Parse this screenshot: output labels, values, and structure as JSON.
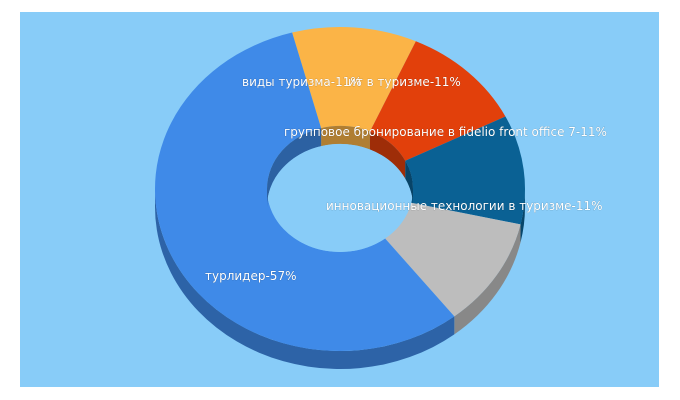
{
  "chart_data": {
    "type": "pie",
    "variant": "donut-3d",
    "background": "#88ccf8",
    "slices": [
      {
        "label": "турлидер-57%",
        "value": 57,
        "color": "#3f8ae8"
      },
      {
        "label": "виды туризма-11%",
        "value": 11,
        "color": "#fbb447"
      },
      {
        "label": "ит в туризме-11%",
        "value": 11,
        "color": "#e2400b"
      },
      {
        "label": "групповое бронирование в fidelio front office 7-11%",
        "value": 11,
        "color": "#0a6194"
      },
      {
        "label": "инновационные технологии в туризме-11%",
        "value": 11,
        "color": "#bdbdbd"
      }
    ]
  }
}
